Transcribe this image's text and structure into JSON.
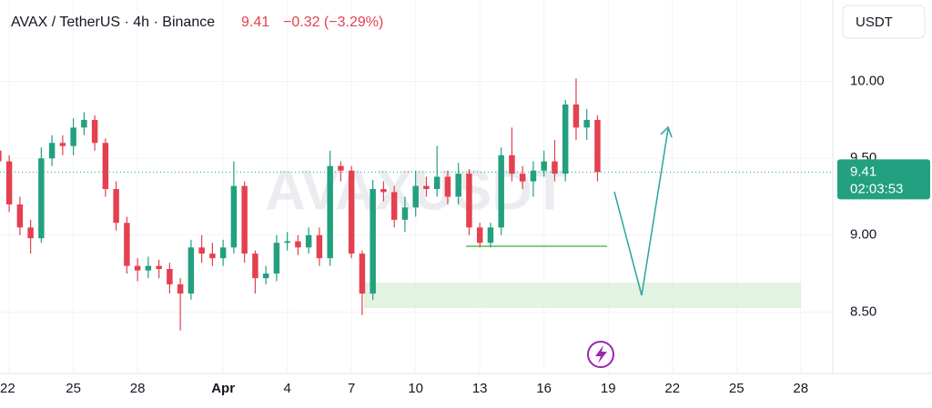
{
  "chart_data": {
    "type": "candlestick",
    "title": "AVAX / TetherUS · 4h · Binance",
    "last_price": 9.41,
    "change": "−0.32 (−3.29%)",
    "countdown": "02:03:53",
    "currency": "USDT",
    "watermark": "AVAXUSDT",
    "up_color": "#22a07f",
    "down_color": "#e5404f",
    "x": [
      -0.5,
      0,
      0.5,
      1,
      1.5,
      2,
      2.5,
      3,
      3.5,
      4,
      4.5,
      5,
      5.5,
      6,
      6.5,
      7,
      7.5,
      8,
      8.5,
      9,
      9.5,
      10,
      10.5,
      11,
      11.5,
      12,
      12.5,
      13,
      13.5,
      14,
      14.5,
      15,
      15.5,
      16,
      16.5,
      17,
      17.5,
      18,
      18.5,
      19,
      19.5,
      20,
      20.5,
      21,
      21.5,
      22,
      22.5,
      23,
      23.5,
      24,
      24.5,
      25,
      25.5,
      26,
      26.5,
      27,
      27.5
    ],
    "open": [
      9.55,
      9.48,
      9.2,
      9.05,
      8.98,
      9.5,
      9.6,
      9.58,
      9.7,
      9.75,
      9.6,
      9.3,
      9.08,
      8.8,
      8.77,
      8.8,
      8.78,
      8.68,
      8.62,
      8.92,
      8.88,
      8.85,
      8.92,
      9.32,
      8.88,
      8.72,
      8.75,
      8.95,
      8.96,
      8.92,
      9.0,
      8.85,
      9.45,
      9.42,
      8.88,
      8.62,
      9.3,
      9.28,
      9.1,
      9.18,
      9.32,
      9.3,
      9.38,
      9.25,
      9.4,
      9.05,
      8.95,
      9.05,
      9.52,
      9.4,
      9.35,
      9.42,
      9.48,
      9.4,
      9.85,
      9.7,
      9.75
    ],
    "high": [
      9.6,
      9.52,
      9.25,
      9.1,
      9.57,
      9.65,
      9.65,
      9.76,
      9.8,
      9.78,
      9.63,
      9.35,
      9.12,
      8.85,
      8.86,
      8.84,
      8.82,
      8.72,
      8.97,
      9.0,
      8.95,
      8.97,
      9.48,
      9.35,
      8.9,
      8.8,
      9.0,
      9.02,
      9.0,
      9.05,
      9.05,
      9.55,
      9.48,
      9.45,
      8.9,
      9.36,
      9.35,
      9.32,
      9.25,
      9.42,
      9.38,
      9.58,
      9.42,
      9.47,
      9.43,
      9.08,
      9.08,
      9.57,
      9.7,
      9.45,
      9.48,
      9.55,
      9.62,
      9.88,
      10.02,
      9.82,
      9.78
    ],
    "low": [
      9.42,
      9.15,
      9.0,
      8.88,
      8.95,
      9.45,
      9.52,
      9.52,
      9.65,
      9.55,
      9.25,
      9.03,
      8.75,
      8.7,
      8.72,
      8.72,
      8.62,
      8.38,
      8.58,
      8.82,
      8.8,
      8.8,
      8.88,
      8.82,
      8.62,
      8.68,
      8.7,
      8.9,
      8.87,
      8.88,
      8.8,
      8.8,
      9.35,
      8.85,
      8.48,
      8.58,
      9.22,
      9.05,
      9.02,
      9.12,
      9.25,
      9.25,
      9.2,
      9.2,
      9.0,
      8.92,
      8.92,
      9.0,
      9.35,
      9.3,
      9.25,
      9.38,
      9.35,
      9.35,
      9.62,
      9.62,
      9.35
    ],
    "close": [
      9.48,
      9.2,
      9.05,
      8.98,
      9.5,
      9.6,
      9.58,
      9.7,
      9.75,
      9.6,
      9.3,
      9.08,
      8.8,
      8.77,
      8.8,
      8.78,
      8.68,
      8.62,
      8.92,
      8.88,
      8.85,
      8.92,
      9.32,
      8.88,
      8.72,
      8.75,
      8.95,
      8.96,
      8.92,
      9.0,
      8.85,
      9.45,
      9.42,
      8.88,
      8.62,
      9.3,
      9.28,
      9.1,
      9.18,
      9.32,
      9.3,
      9.38,
      9.25,
      9.4,
      9.05,
      8.95,
      9.05,
      9.52,
      9.4,
      9.35,
      9.42,
      9.48,
      9.4,
      9.85,
      9.7,
      9.75,
      9.41
    ],
    "xlim": [
      -0.43,
      38.5
    ],
    "xticks": [
      {
        "value": 0,
        "label": "22"
      },
      {
        "value": 3,
        "label": "25"
      },
      {
        "value": 6,
        "label": "28"
      },
      {
        "value": 10,
        "label": "Apr"
      },
      {
        "value": 13,
        "label": "4"
      },
      {
        "value": 16,
        "label": "7"
      },
      {
        "value": 19,
        "label": "10"
      },
      {
        "value": 22,
        "label": "13"
      },
      {
        "value": 25,
        "label": "16"
      },
      {
        "value": 28,
        "label": "19"
      },
      {
        "value": 31,
        "label": "22"
      },
      {
        "value": 34,
        "label": "25"
      },
      {
        "value": 37,
        "label": "28"
      }
    ],
    "ylim": [
      8.1,
      10.53
    ],
    "yticks": [
      {
        "value": 8.5,
        "label": "8.50"
      },
      {
        "value": 9,
        "label": "9.00"
      },
      {
        "value": 9.5,
        "label": "9.50"
      },
      {
        "value": 10,
        "label": "10.00"
      }
    ]
  }
}
